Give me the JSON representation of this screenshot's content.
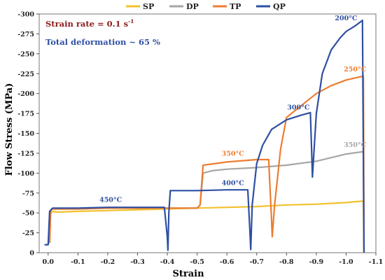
{
  "chart_data": {
    "type": "line",
    "xlabel": "Strain",
    "ylabel": "Flow Stress (MPa)",
    "xlim": [
      0.03,
      -1.1
    ],
    "ylim": [
      0,
      -300
    ],
    "x_ticks": [
      0.0,
      -0.1,
      -0.2,
      -0.3,
      -0.4,
      -0.5,
      -0.6,
      -0.7,
      -0.8,
      -0.9,
      -1.0,
      -1.1
    ],
    "x_tick_labels": [
      "0.0",
      "-0.1",
      "-0.2",
      "-0.3",
      "-0.4",
      "-0.5",
      "-0.6",
      "-0.7",
      "-0.8",
      "-0.9",
      "-1.0",
      "-1.1"
    ],
    "y_ticks": [
      0,
      -25,
      -50,
      -75,
      -100,
      -125,
      -150,
      -175,
      -200,
      -225,
      -250,
      -275,
      -300
    ],
    "y_tick_labels": [
      "0",
      "-25",
      "-50",
      "-75",
      "-100",
      "-125",
      "-150",
      "-175",
      "-200",
      "-225",
      "-250",
      "-275",
      "-300"
    ],
    "legend_position": "top",
    "grid": false,
    "annotations": {
      "strain_rate": {
        "base": "Strain rate = 0.1 s",
        "sup": "-1"
      },
      "total_deformation": "Total deformation ~ 65 %"
    },
    "series": [
      {
        "name": "SP",
        "color": "#f2c12e",
        "points": [
          [
            -0.005,
            -12
          ],
          [
            -0.008,
            -47
          ],
          [
            -0.012,
            -52
          ],
          [
            -0.03,
            -51
          ],
          [
            -0.1,
            -52
          ],
          [
            -0.2,
            -53
          ],
          [
            -0.3,
            -54
          ],
          [
            -0.4,
            -55
          ],
          [
            -0.5,
            -56
          ],
          [
            -0.6,
            -57
          ],
          [
            -0.7,
            -58
          ],
          [
            -0.8,
            -60
          ],
          [
            -0.9,
            -61
          ],
          [
            -1.0,
            -63
          ],
          [
            -1.058,
            -65
          ],
          [
            -1.06,
            0
          ]
        ]
      },
      {
        "name": "DP",
        "color": "#a6a6a6",
        "points": [
          [
            -0.005,
            -12
          ],
          [
            -0.008,
            -52
          ],
          [
            -0.012,
            -55
          ],
          [
            -0.1,
            -55
          ],
          [
            -0.2,
            -56
          ],
          [
            -0.3,
            -56
          ],
          [
            -0.4,
            -56
          ],
          [
            -0.5,
            -56
          ],
          [
            -0.51,
            -60
          ],
          [
            -0.52,
            -100
          ],
          [
            -0.55,
            -103
          ],
          [
            -0.6,
            -105
          ],
          [
            -0.7,
            -107
          ],
          [
            -0.8,
            -110
          ],
          [
            -0.9,
            -115
          ],
          [
            -1.0,
            -124
          ],
          [
            -1.058,
            -127
          ],
          [
            -1.06,
            0
          ]
        ]
      },
      {
        "name": "TP",
        "color": "#ed7d31",
        "points": [
          [
            -0.005,
            -12
          ],
          [
            -0.008,
            -52
          ],
          [
            -0.012,
            -55
          ],
          [
            -0.1,
            -55
          ],
          [
            -0.2,
            -56
          ],
          [
            -0.3,
            -56
          ],
          [
            -0.4,
            -56
          ],
          [
            -0.5,
            -56
          ],
          [
            -0.51,
            -60
          ],
          [
            -0.52,
            -110
          ],
          [
            -0.6,
            -114
          ],
          [
            -0.7,
            -117
          ],
          [
            -0.74,
            -117
          ],
          [
            -0.75,
            -40
          ],
          [
            -0.752,
            -20
          ],
          [
            -0.76,
            -60
          ],
          [
            -0.78,
            -130
          ],
          [
            -0.8,
            -170
          ],
          [
            -0.85,
            -185
          ],
          [
            -0.9,
            -200
          ],
          [
            -0.95,
            -210
          ],
          [
            -1.0,
            -217
          ],
          [
            -1.058,
            -222
          ],
          [
            -1.06,
            0
          ]
        ]
      },
      {
        "name": "QP",
        "color": "#2e4fa3",
        "points": [
          [
            -0.0,
            -10
          ],
          [
            0.01,
            -10
          ],
          [
            0.0,
            -10
          ],
          [
            -0.005,
            -52
          ],
          [
            -0.015,
            -56
          ],
          [
            -0.1,
            -56
          ],
          [
            -0.2,
            -57
          ],
          [
            -0.3,
            -57
          ],
          [
            -0.39,
            -57
          ],
          [
            -0.4,
            -20
          ],
          [
            -0.402,
            -3
          ],
          [
            -0.405,
            -50
          ],
          [
            -0.41,
            -78
          ],
          [
            -0.5,
            -78
          ],
          [
            -0.6,
            -79
          ],
          [
            -0.67,
            -79
          ],
          [
            -0.678,
            -20
          ],
          [
            -0.68,
            -4
          ],
          [
            -0.685,
            -60
          ],
          [
            -0.7,
            -112
          ],
          [
            -0.72,
            -135
          ],
          [
            -0.75,
            -155
          ],
          [
            -0.8,
            -167
          ],
          [
            -0.85,
            -173
          ],
          [
            -0.88,
            -176
          ],
          [
            -0.885,
            -120
          ],
          [
            -0.887,
            -95
          ],
          [
            -0.9,
            -175
          ],
          [
            -0.92,
            -225
          ],
          [
            -0.95,
            -255
          ],
          [
            -0.98,
            -270
          ],
          [
            -1.0,
            -278
          ],
          [
            -1.03,
            -285
          ],
          [
            -1.055,
            -292
          ],
          [
            -1.06,
            0
          ]
        ]
      }
    ],
    "temperature_labels": [
      {
        "text": "450°C",
        "series": "QP",
        "x": -0.21,
        "y": -64
      },
      {
        "text": "400°C",
        "series": "QP",
        "x": -0.62,
        "y": -85
      },
      {
        "text": "350°C",
        "series": "TP",
        "x": -0.62,
        "y": -122
      },
      {
        "text": "300°C",
        "series": "QP",
        "x": -0.84,
        "y": -180
      },
      {
        "text": "250°C",
        "series": "TP",
        "x": -1.03,
        "y": -228
      },
      {
        "text": "350°C",
        "series": "DP",
        "x": -1.03,
        "y": -133
      },
      {
        "text": "200°C",
        "series": "QP",
        "x": -1.0,
        "y": -292
      }
    ]
  }
}
